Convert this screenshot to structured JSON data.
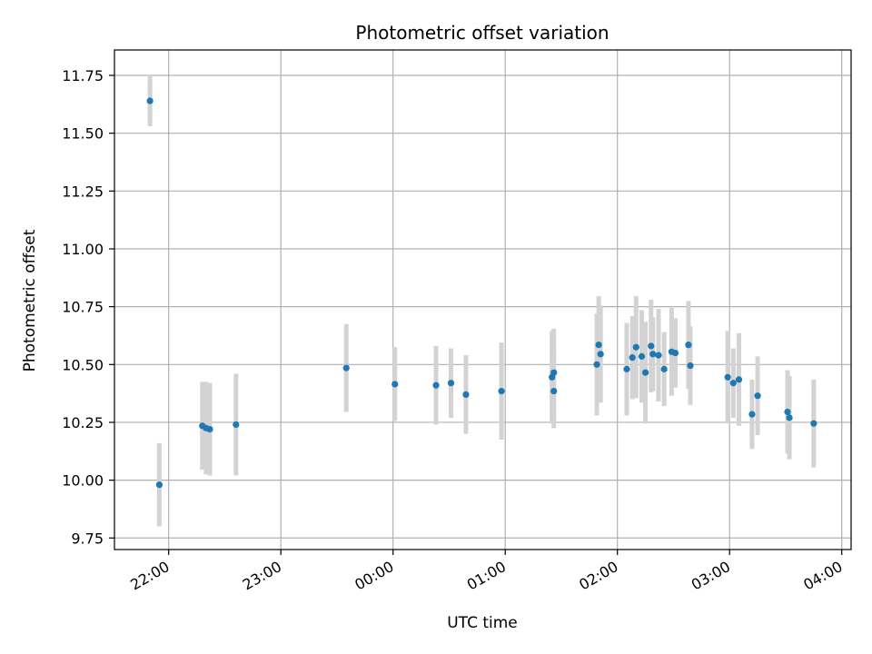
{
  "chart_data": {
    "type": "scatter",
    "title": "Photometric offset variation",
    "xlabel": "UTC time",
    "ylabel": "Photometric offset",
    "x_is_time": true,
    "xlim": [
      "21:31",
      "04:05"
    ],
    "ylim": [
      9.7,
      11.86
    ],
    "yticks": [
      9.75,
      10.0,
      10.25,
      10.5,
      10.75,
      11.0,
      11.25,
      11.5,
      11.75
    ],
    "xticks": [
      "22:00",
      "23:00",
      "00:00",
      "01:00",
      "02:00",
      "03:00",
      "04:00"
    ],
    "grid": true,
    "marker_color": "#1f77b4",
    "errorbar_color": "#d3d3d3",
    "points": [
      {
        "t": "21:50",
        "y": 11.64,
        "err": 0.11
      },
      {
        "t": "21:55",
        "y": 9.98,
        "err": 0.18
      },
      {
        "t": "22:18",
        "y": 10.235,
        "err": 0.19
      },
      {
        "t": "22:20",
        "y": 10.225,
        "err": 0.2
      },
      {
        "t": "22:22",
        "y": 10.22,
        "err": 0.2
      },
      {
        "t": "22:36",
        "y": 10.24,
        "err": 0.22
      },
      {
        "t": "23:35",
        "y": 10.485,
        "err": 0.19
      },
      {
        "t": "00:01",
        "y": 10.415,
        "err": 0.16
      },
      {
        "t": "00:23",
        "y": 10.41,
        "err": 0.17
      },
      {
        "t": "00:31",
        "y": 10.42,
        "err": 0.15
      },
      {
        "t": "00:39",
        "y": 10.37,
        "err": 0.17
      },
      {
        "t": "00:58",
        "y": 10.385,
        "err": 0.21
      },
      {
        "t": "01:25",
        "y": 10.445,
        "err": 0.2
      },
      {
        "t": "01:26",
        "y": 10.465,
        "err": 0.19
      },
      {
        "t": "01:26",
        "y": 10.385,
        "err": 0.16
      },
      {
        "t": "01:49",
        "y": 10.5,
        "err": 0.22
      },
      {
        "t": "01:50",
        "y": 10.585,
        "err": 0.21
      },
      {
        "t": "01:51",
        "y": 10.545,
        "err": 0.21
      },
      {
        "t": "02:05",
        "y": 10.48,
        "err": 0.2
      },
      {
        "t": "02:08",
        "y": 10.53,
        "err": 0.18
      },
      {
        "t": "02:10",
        "y": 10.575,
        "err": 0.22
      },
      {
        "t": "02:13",
        "y": 10.535,
        "err": 0.2
      },
      {
        "t": "02:15",
        "y": 10.465,
        "err": 0.22
      },
      {
        "t": "02:18",
        "y": 10.58,
        "err": 0.2
      },
      {
        "t": "02:19",
        "y": 10.545,
        "err": 0.16
      },
      {
        "t": "02:22",
        "y": 10.54,
        "err": 0.2
      },
      {
        "t": "02:25",
        "y": 10.48,
        "err": 0.16
      },
      {
        "t": "02:29",
        "y": 10.555,
        "err": 0.19
      },
      {
        "t": "02:31",
        "y": 10.55,
        "err": 0.15
      },
      {
        "t": "02:38",
        "y": 10.585,
        "err": 0.19
      },
      {
        "t": "02:39",
        "y": 10.495,
        "err": 0.17
      },
      {
        "t": "02:59",
        "y": 10.445,
        "err": 0.2
      },
      {
        "t": "03:02",
        "y": 10.42,
        "err": 0.15
      },
      {
        "t": "03:05",
        "y": 10.435,
        "err": 0.2
      },
      {
        "t": "03:12",
        "y": 10.285,
        "err": 0.15
      },
      {
        "t": "03:15",
        "y": 10.365,
        "err": 0.17
      },
      {
        "t": "03:31",
        "y": 10.295,
        "err": 0.18
      },
      {
        "t": "03:32",
        "y": 10.27,
        "err": 0.18
      },
      {
        "t": "03:45",
        "y": 10.245,
        "err": 0.19
      }
    ]
  }
}
